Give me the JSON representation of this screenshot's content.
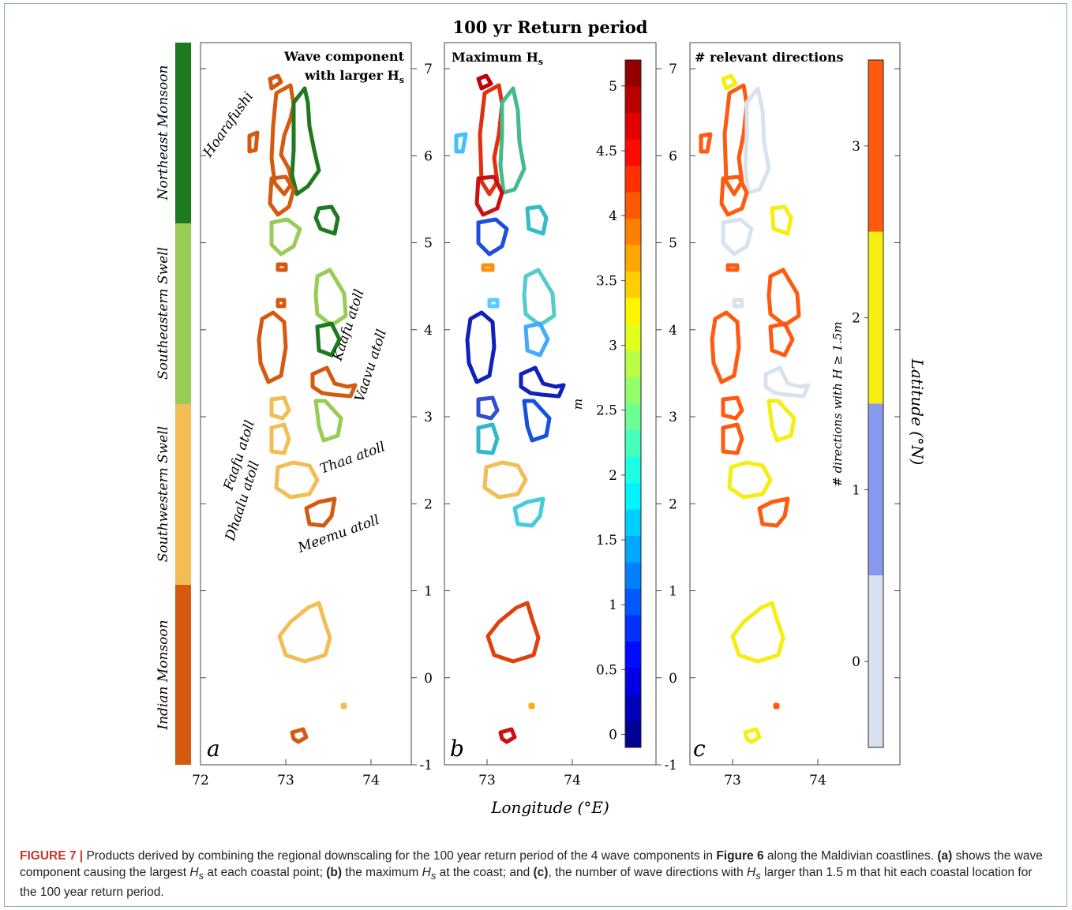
{
  "figure": {
    "title": "100 yr Return period",
    "xlabel": "Longitude (°E)",
    "panels": [
      {
        "id": "a",
        "title_line1": "Wave component",
        "title_line2": "with larger H",
        "title_sub": "s"
      },
      {
        "id": "b",
        "title": "Maximum H",
        "title_sub": "s"
      },
      {
        "id": "c",
        "title": "# relevant directions"
      }
    ],
    "components_bar": [
      {
        "label": "Northeast Monsoon",
        "color": "#1e7a1e"
      },
      {
        "label": "Southeastern Swell",
        "color": "#99cc55"
      },
      {
        "label": "Southwestern Swell",
        "color": "#f2bd55"
      },
      {
        "label": "Indian Monsoon",
        "color": "#d45a10"
      }
    ],
    "atoll_labels": [
      {
        "text": "Hoarafushi"
      },
      {
        "text": "Kaafu atoll"
      },
      {
        "text": "Vaavu atoll"
      },
      {
        "text": "Faafu atoll"
      },
      {
        "text": "Dhaalu atoll"
      },
      {
        "text": "Thaa atoll"
      },
      {
        "text": "Meemu atoll"
      }
    ],
    "x_ticks": [
      "72",
      "73",
      "74"
    ],
    "lat_ticks": [
      "7",
      "6",
      "5",
      "4",
      "3",
      "2",
      "1",
      "0",
      "-1"
    ],
    "hs_colorbar": {
      "unit": "m",
      "ticks": [
        "5",
        "4.5",
        "4",
        "3.5",
        "3",
        "2.5",
        "2",
        "1.5",
        "1",
        "0.5",
        "0"
      ]
    },
    "dir_colorbar": {
      "label": "# directions with H",
      "label_rest": " ≥ 1.5m",
      "ticks": [
        "3",
        "2",
        "1",
        "0"
      ],
      "colors": [
        "#d8e2ee",
        "#8a99f0",
        "#f5ee10",
        "#ff5a10"
      ]
    },
    "lat_label": "Latitude (°N)",
    "colors": {
      "nem": "#1e7a1e",
      "ses": "#99cc55",
      "sws": "#f2bd55",
      "im": "#d45a10"
    }
  },
  "caption": {
    "fig_id": "FIGURE 7 |",
    "text_1": " Products derived by combining the regional downscaling for the 100 year return period of the 4 wave components in ",
    "ref": "Figure 6",
    "text_2": " along the Maldivian coastlines. ",
    "a_tag": "(a)",
    "text_3": " shows the wave component causing the largest ",
    "hs1": "H",
    "hs1_sub": "s",
    "text_4": " at each coastal point; ",
    "b_tag": "(b)",
    "text_5": " the maximum ",
    "hs2": "H",
    "hs2_sub": "s",
    "text_6": " at the coast; and ",
    "c_tag": "(c)",
    "text_7": ", the number of wave directions with ",
    "hs3": "H",
    "hs3_sub": "s",
    "text_8": " larger than 1.5 m that hit each coastal location for the 100 year return period."
  }
}
